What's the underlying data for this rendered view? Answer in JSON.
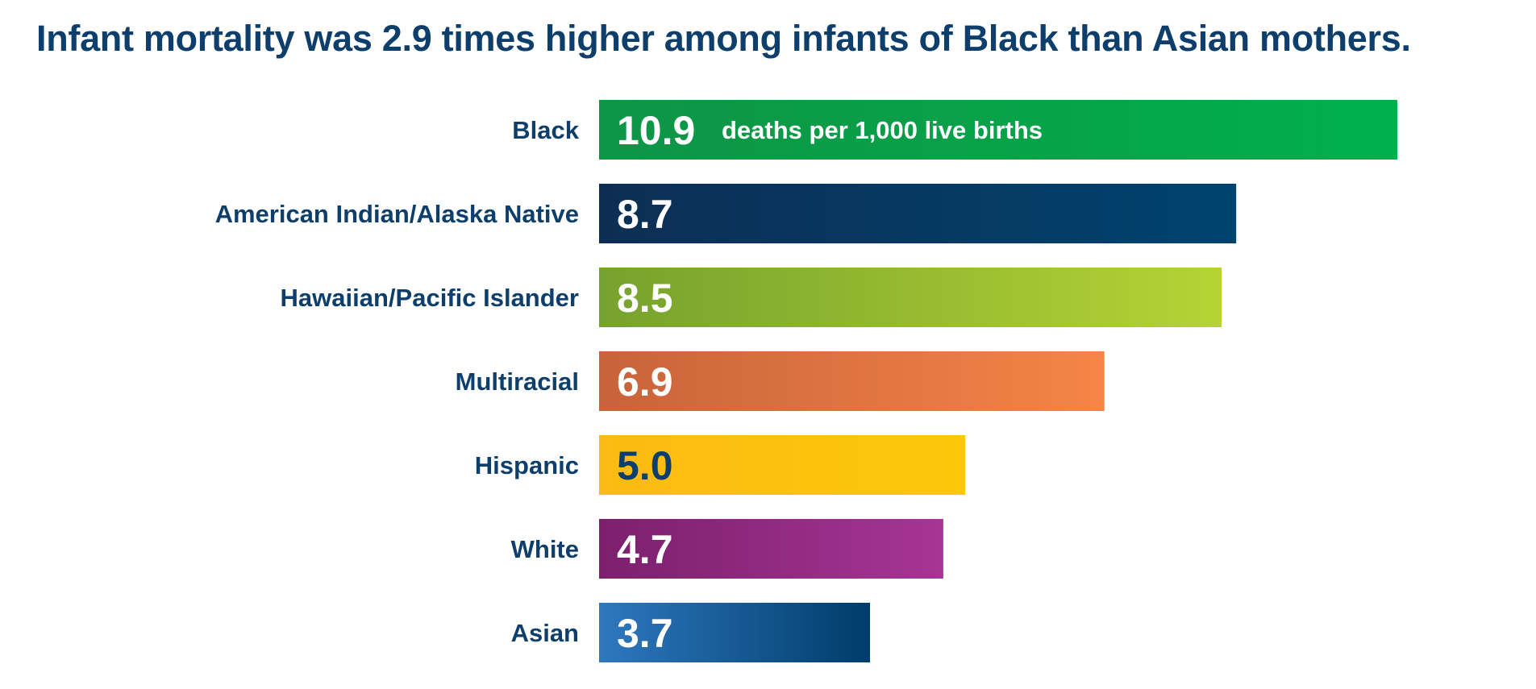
{
  "chart_data": {
    "type": "bar",
    "orientation": "horizontal",
    "title": "Infant mortality was 2.9 times higher among infants of Black than Asian mothers.",
    "unit_note": "deaths per 1,000 live births",
    "categories": [
      "Black",
      "American Indian/Alaska Native",
      "Hawaiian/Pacific Islander",
      "Multiracial",
      "Hispanic",
      "White",
      "Asian"
    ],
    "values": [
      10.9,
      8.7,
      8.5,
      6.9,
      5.0,
      4.7,
      3.7
    ],
    "value_labels": [
      "10.9",
      "8.7",
      "8.5",
      "6.9",
      "5.0",
      "4.7",
      "3.7"
    ],
    "colors": [
      [
        "#0e9445",
        "#00b04c"
      ],
      [
        "#0d2e54",
        "#00436f"
      ],
      [
        "#76a22e",
        "#b5d334"
      ],
      [
        "#c8633a",
        "#f58547"
      ],
      [
        "#fbbb13",
        "#fdc70a"
      ],
      [
        "#7c1f6d",
        "#a63594"
      ],
      [
        "#2e78bf",
        "#003c6a"
      ]
    ],
    "value_label_colors": [
      "#ffffff",
      "#ffffff",
      "#ffffff",
      "#ffffff",
      "#0e3f6c",
      "#ffffff",
      "#ffffff"
    ],
    "xlim": [
      0,
      10.9
    ],
    "grid": false,
    "xlabel": "",
    "ylabel": ""
  }
}
